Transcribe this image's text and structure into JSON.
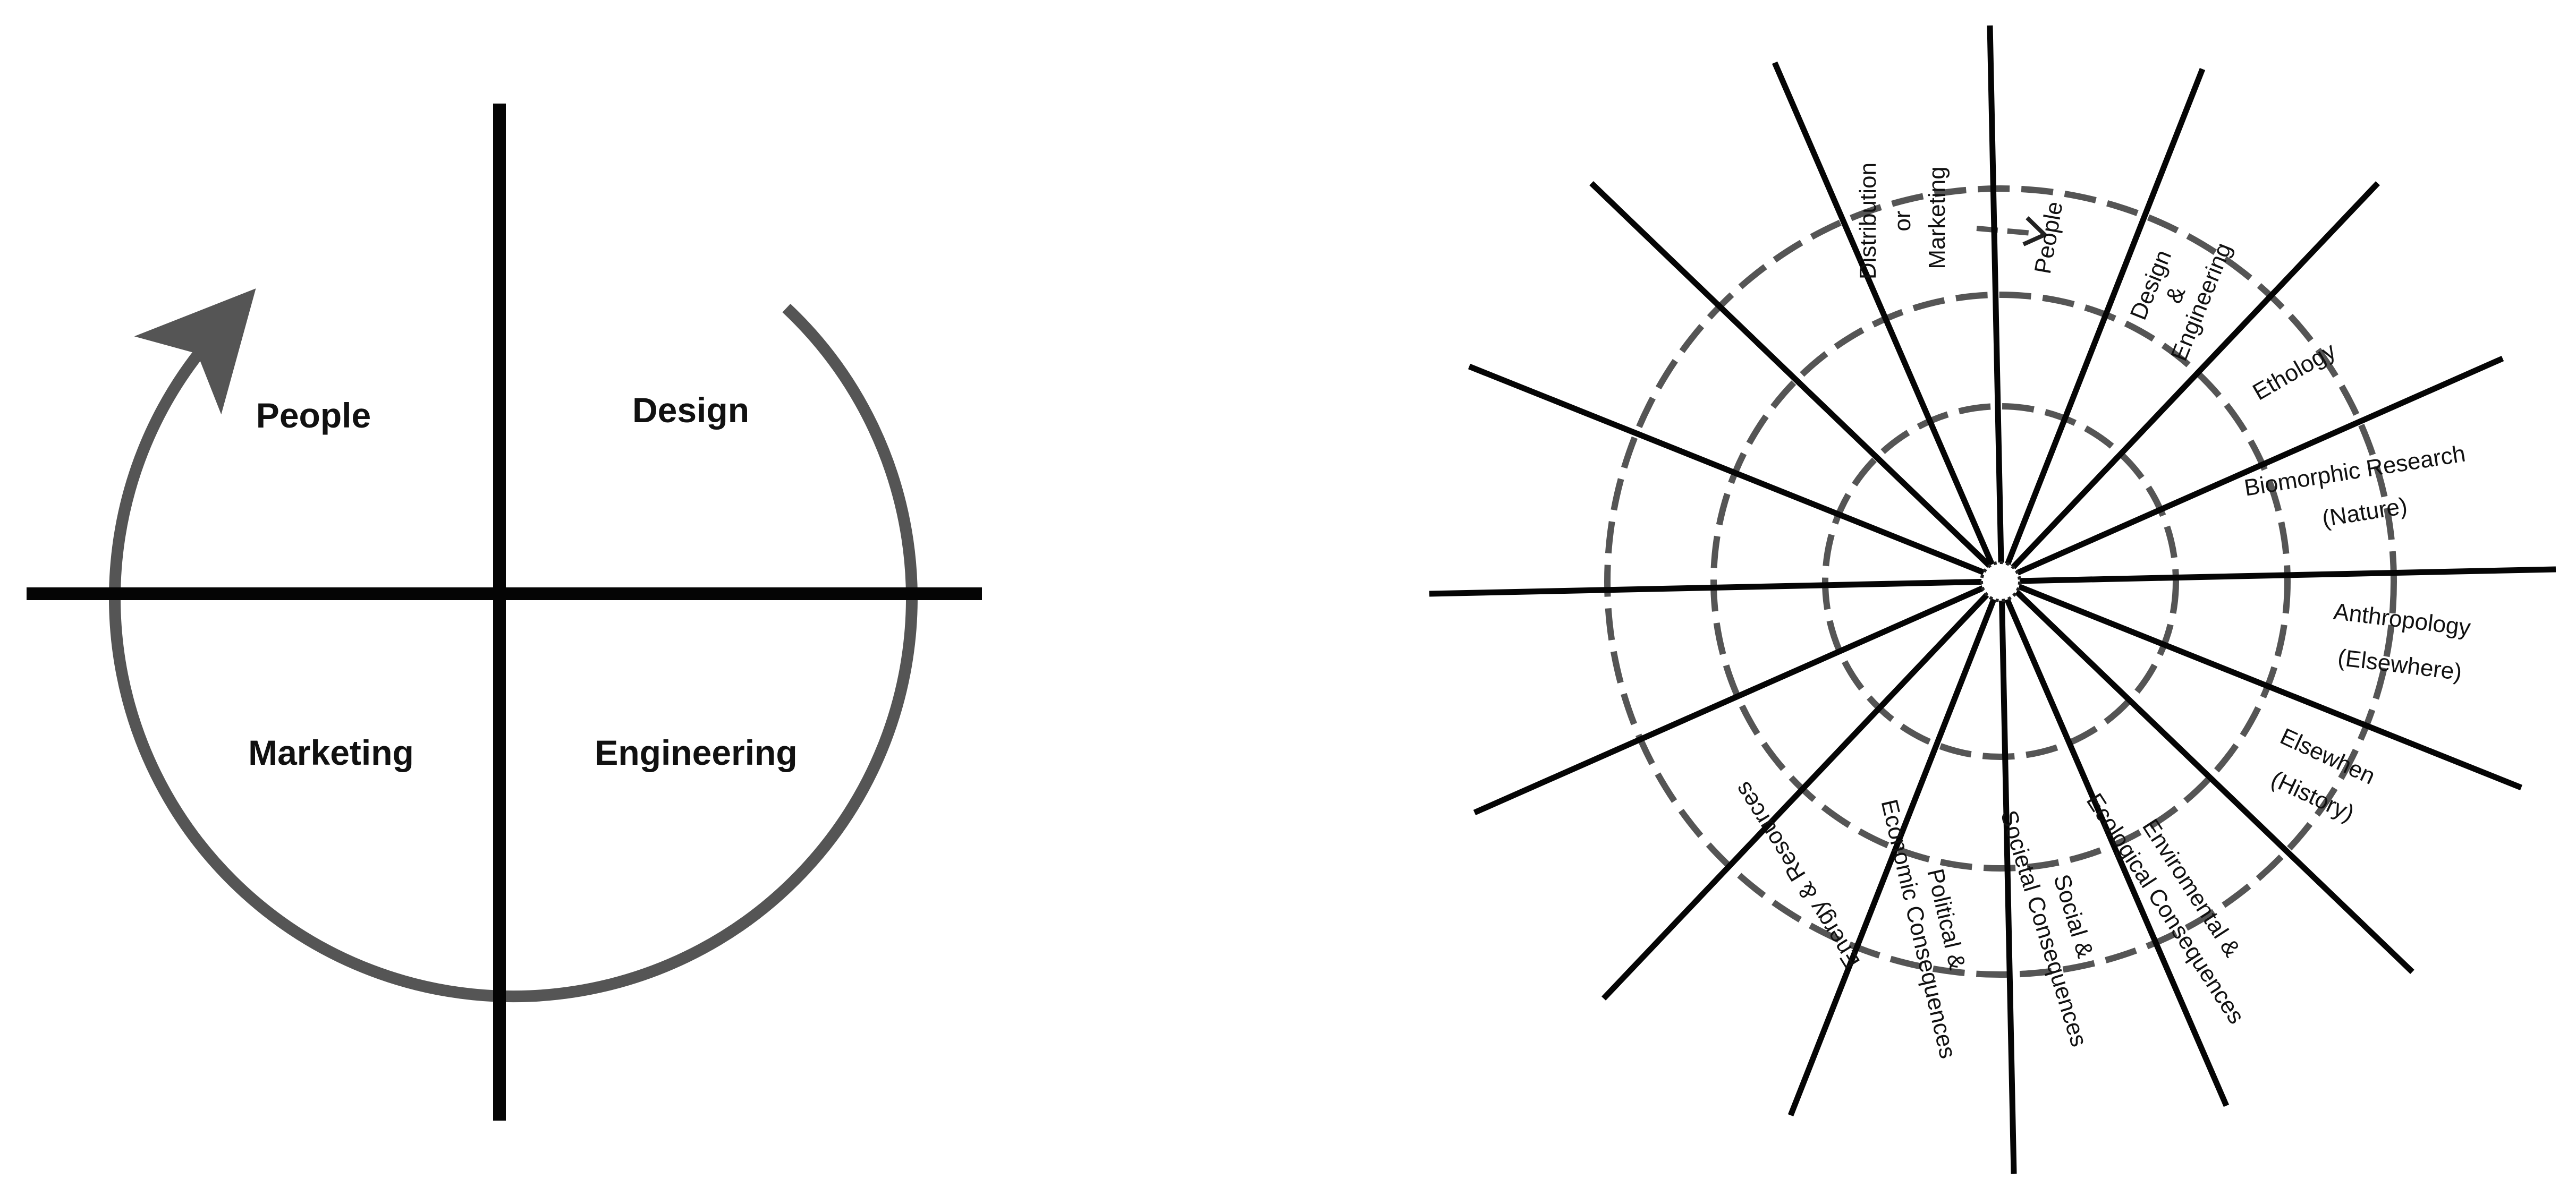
{
  "quadrant_diagram": {
    "labels": {
      "top_left": "People",
      "top_right": "Design",
      "bottom_left": "Marketing",
      "bottom_right": "Engineering"
    }
  },
  "wheel_diagram": {
    "labels": [
      {
        "key": "people",
        "lines": [
          "People"
        ]
      },
      {
        "key": "design_engineering",
        "lines": [
          "Design",
          "&",
          "Engineering"
        ]
      },
      {
        "key": "ethology",
        "lines": [
          "Ethology"
        ]
      },
      {
        "key": "biomorphic",
        "lines": [
          "Biomorphic Research",
          "(Nature)"
        ]
      },
      {
        "key": "anthropology",
        "lines": [
          "Anthropology",
          "(Elsewhere)"
        ]
      },
      {
        "key": "elsewhen",
        "lines": [
          "Elsewhen",
          "(History)"
        ]
      },
      {
        "key": "environmental",
        "lines": [
          "Enviromental &",
          "Ecological Consequences"
        ]
      },
      {
        "key": "social",
        "lines": [
          "Social &",
          "Societal Consequences"
        ]
      },
      {
        "key": "political",
        "lines": [
          "Political &",
          "Economic Consequences"
        ]
      },
      {
        "key": "energy",
        "lines": [
          "Energy & Resources"
        ]
      },
      {
        "key": "distribution",
        "lines": [
          "Distribution",
          "or",
          "Marketing"
        ]
      }
    ]
  },
  "colors": {
    "line": "#050505",
    "arc": "#555555",
    "text": "#111111",
    "background": "#ffffff"
  }
}
